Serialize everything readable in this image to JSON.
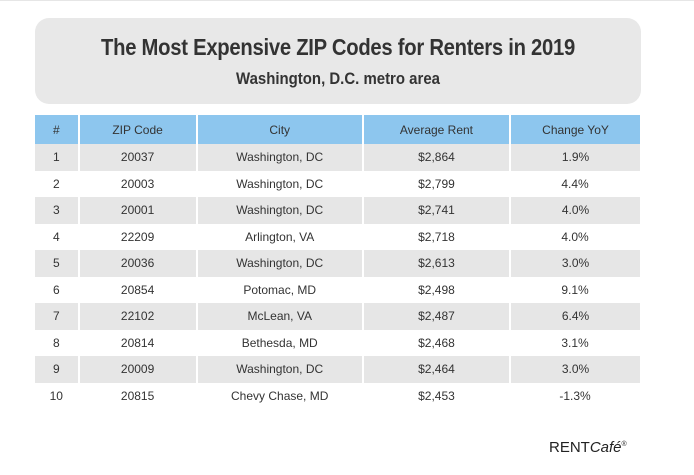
{
  "title": "The Most Expensive ZIP Codes for Renters in 2019",
  "subtitle": "Washington, D.C. metro area",
  "table": {
    "headers": [
      "#",
      "ZIP Code",
      "City",
      "Average Rent",
      "Change YoY"
    ],
    "rows": [
      [
        "1",
        "20037",
        "Washington, DC",
        "$2,864",
        "1.9%"
      ],
      [
        "2",
        "20003",
        "Washington, DC",
        "$2,799",
        "4.4%"
      ],
      [
        "3",
        "20001",
        "Washington, DC",
        "$2,741",
        "4.0%"
      ],
      [
        "4",
        "22209",
        "Arlington, VA",
        "$2,718",
        "4.0%"
      ],
      [
        "5",
        "20036",
        "Washington, DC",
        "$2,613",
        "3.0%"
      ],
      [
        "6",
        "20854",
        "Potomac, MD",
        "$2,498",
        "9.1%"
      ],
      [
        "7",
        "22102",
        "McLean, VA",
        "$2,487",
        "6.4%"
      ],
      [
        "8",
        "20814",
        "Bethesda, MD",
        "$2,468",
        "3.1%"
      ],
      [
        "9",
        "20009",
        "Washington, DC",
        "$2,464",
        "3.0%"
      ],
      [
        "10",
        "20815",
        "Chevy Chase, MD",
        "$2,453",
        "-1.3%"
      ]
    ]
  },
  "logo": {
    "text_a": "RENT",
    "text_b": "Café",
    "mark": "®"
  },
  "colors": {
    "header": "#8dc6ee",
    "stripe": "#e6e6e6",
    "title_box": "#e8e8e8"
  }
}
